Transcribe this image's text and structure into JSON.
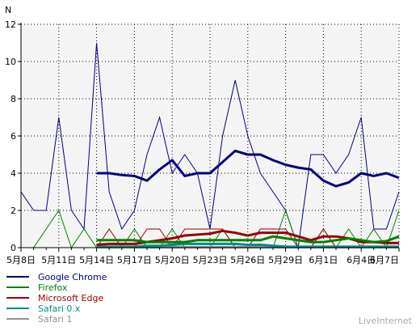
{
  "chart_data": {
    "type": "line",
    "ylabel": "N",
    "ylim": [
      0,
      12
    ],
    "yticks": [
      0,
      2,
      4,
      6,
      8,
      10,
      12
    ],
    "x_start": "5月8日",
    "x_days": 31,
    "xtick_labels": [
      "5月8日",
      "5月11日",
      "5月14日",
      "5月17日",
      "5月20日",
      "5月23日",
      "5月26日",
      "5月29日",
      "6月1日",
      "6月4日",
      "6月7日"
    ],
    "grid": true,
    "legend_position": "bottom-left",
    "watermark": "LiveInternet",
    "series": [
      {
        "name": "Google Chrome",
        "color": "#000080",
        "values": [
          3,
          2,
          2,
          7,
          2,
          1,
          11,
          3,
          1,
          2,
          5,
          7,
          4,
          5,
          4,
          1,
          6,
          9,
          6,
          4,
          3,
          2,
          0,
          5,
          5,
          4,
          5,
          7,
          1,
          1,
          3
        ],
        "trend_start": 6,
        "trend": [
          4.0,
          4.0,
          3.9,
          3.85,
          3.6,
          4.2,
          4.7,
          3.85,
          4.0,
          4.0,
          4.6,
          5.2,
          5.0,
          5.0,
          4.7,
          4.45,
          4.3,
          4.2,
          3.6,
          3.3,
          3.5,
          4.0,
          3.85,
          4.0,
          3.75
        ]
      },
      {
        "name": "Firefox",
        "color": "#008000",
        "values": [
          0,
          0,
          1,
          2,
          0,
          1,
          0,
          0,
          0,
          1,
          0,
          0,
          1,
          0,
          0,
          0,
          1,
          0,
          0,
          0,
          0,
          2,
          0,
          0,
          1,
          0,
          1,
          0,
          1,
          0,
          2
        ],
        "trend_start": 6,
        "trend": [
          0.4,
          0.4,
          0.4,
          0.4,
          0.3,
          0.3,
          0.3,
          0.3,
          0.4,
          0.4,
          0.4,
          0.4,
          0.4,
          0.4,
          0.6,
          0.5,
          0.4,
          0.3,
          0.3,
          0.4,
          0.5,
          0.4,
          0.3,
          0.35,
          0.6
        ]
      },
      {
        "name": "Microsoft Edge",
        "color": "#990000",
        "values": [
          0,
          0,
          0,
          0,
          0,
          0,
          0,
          1,
          0,
          0,
          1,
          1,
          0,
          1,
          1,
          1,
          1,
          0,
          0,
          1,
          1,
          1,
          0,
          0,
          1,
          0,
          0,
          0,
          0,
          0,
          0
        ],
        "trend_start": 6,
        "trend": [
          0.15,
          0.2,
          0.2,
          0.2,
          0.3,
          0.4,
          0.5,
          0.65,
          0.7,
          0.75,
          0.9,
          0.8,
          0.65,
          0.8,
          0.8,
          0.8,
          0.6,
          0.4,
          0.6,
          0.6,
          0.5,
          0.3,
          0.3,
          0.25,
          0.25
        ]
      },
      {
        "name": "Safari 0.x",
        "color": "#008B8B",
        "values": [
          0,
          0,
          0,
          0,
          0,
          0,
          0,
          0,
          0,
          0,
          0,
          0,
          0,
          0,
          0,
          0,
          0,
          0,
          0,
          0,
          0,
          0,
          0,
          0,
          0,
          0,
          0,
          0,
          0,
          0,
          0
        ],
        "trend_start": 6,
        "trend": [
          0.05,
          0.05,
          0.05,
          0.05,
          0.1,
          0.1,
          0.15,
          0.2,
          0.2,
          0.2,
          0.2,
          0.2,
          0.15,
          0.15,
          0.1,
          0.05,
          0.05,
          0.05,
          0.05,
          0.05,
          0.05,
          0.05,
          0.05,
          0.05,
          0.05
        ]
      },
      {
        "name": "Safari 1",
        "color": "#909090",
        "values": [
          0,
          0,
          0,
          0,
          0,
          0,
          0,
          0,
          0,
          0,
          0,
          0,
          0,
          0,
          0,
          0,
          0,
          0,
          0,
          0,
          0,
          0,
          0,
          0,
          0,
          0,
          0,
          0,
          0,
          0,
          0
        ],
        "trend_start": 6,
        "trend": [
          0.02,
          0.02,
          0.02,
          0.02,
          0.02,
          0.02,
          0.02,
          0.02,
          0.02,
          0.02,
          0.02,
          0.02,
          0.02,
          0.02,
          0.02,
          0.02,
          0.02,
          0.02,
          0.02,
          0.02,
          0.02,
          0.02,
          0.02,
          0.02,
          0.02
        ]
      }
    ]
  }
}
